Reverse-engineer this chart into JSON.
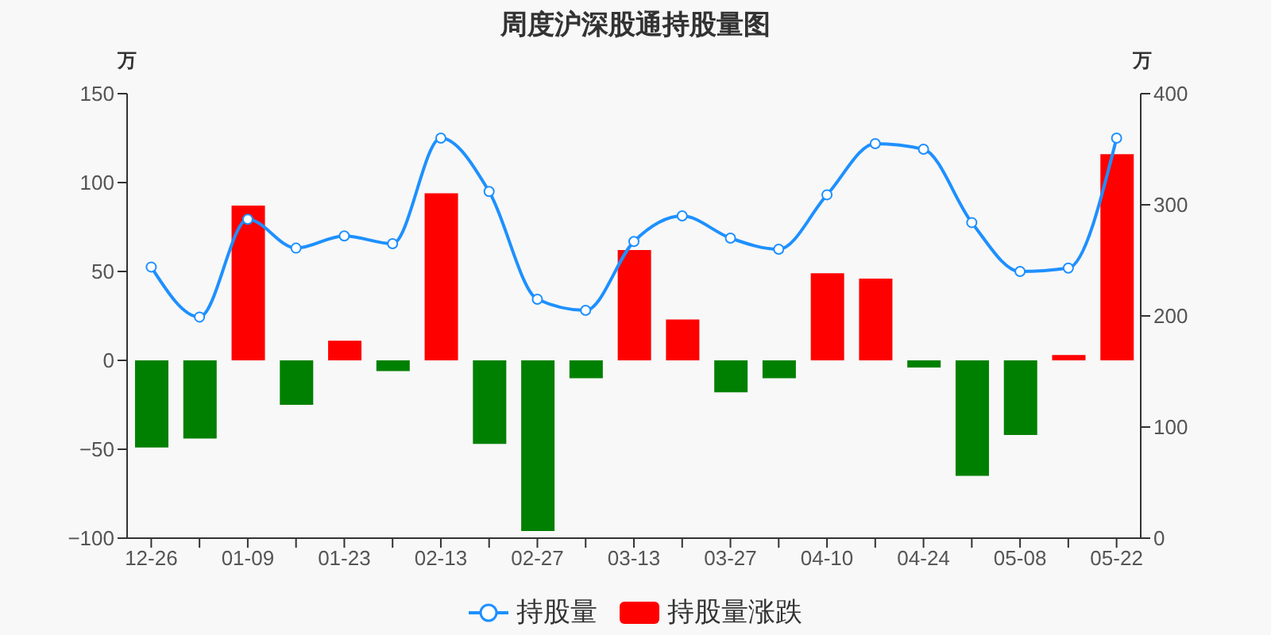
{
  "chart_data": {
    "type": "bar",
    "title": "周度沪深股通持股量图",
    "ylabel": "万",
    "y2label": "万",
    "categories": [
      "12-26",
      null,
      "01-09",
      null,
      "01-23",
      null,
      "02-13",
      null,
      "02-27",
      null,
      "03-13",
      null,
      "03-27",
      null,
      "04-10",
      null,
      "04-24",
      null,
      "05-08",
      null,
      "05-22"
    ],
    "series": [
      {
        "name": "持股量",
        "type": "line",
        "axis": "y2",
        "color": "#1e90ff",
        "marker": "circle",
        "values": [
          244,
          199,
          287,
          261,
          272,
          265,
          360,
          312,
          215,
          205,
          267,
          290,
          270,
          260,
          309,
          355,
          350,
          284,
          240,
          243,
          360
        ]
      },
      {
        "name": "持股量涨跌",
        "color": "#ff0000",
        "colors": [
          "#008000",
          "#008000",
          "#ff0000",
          "#008000",
          "#ff0000",
          "#008000",
          "#ff0000",
          "#008000",
          "#008000",
          "#008000",
          "#ff0000",
          "#ff0000",
          "#008000",
          "#008000",
          "#ff0000",
          "#ff0000",
          "#008000",
          "#008000",
          "#008000",
          "#ff0000",
          "#ff0000"
        ],
        "values": [
          -49,
          -44,
          87,
          -25,
          11,
          -6,
          94,
          -47,
          -96,
          -10,
          62,
          23,
          -18,
          -10,
          49,
          46,
          -4,
          -65,
          -42,
          3,
          116
        ]
      }
    ],
    "ylim": [
      -100,
      150
    ],
    "yticks": [
      {
        "value": -100,
        "label": "−100"
      },
      {
        "value": -50,
        "label": "−50"
      },
      0,
      50,
      100,
      150
    ],
    "y2lim": [
      0,
      400
    ],
    "y2ticks": [
      0,
      100,
      200,
      300,
      400
    ],
    "legend": "bottom"
  }
}
